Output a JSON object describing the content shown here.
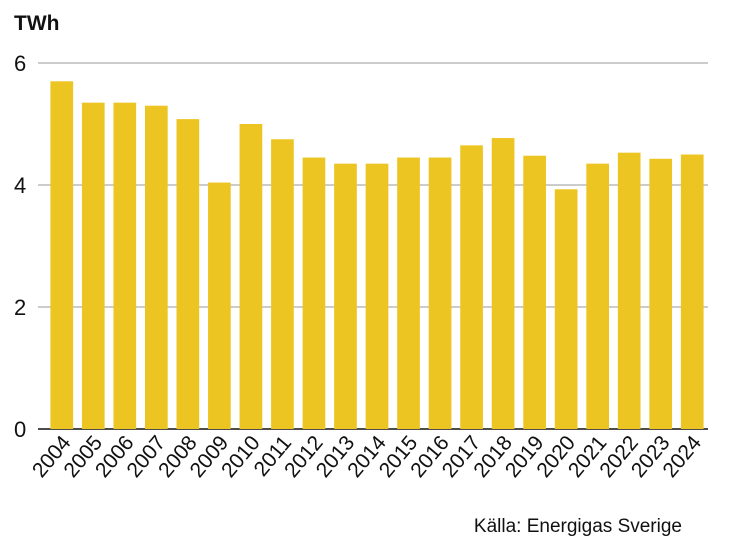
{
  "chart_data": {
    "type": "bar",
    "ylabel": "TWh",
    "source": "Källa: Energigas Sverige",
    "categories": [
      "2004",
      "2005",
      "2006",
      "2007",
      "2008",
      "2009",
      "2010",
      "2011",
      "2012",
      "2013",
      "2014",
      "2015",
      "2016",
      "2017",
      "2018",
      "2019",
      "2020",
      "2021",
      "2022",
      "2023",
      "2024"
    ],
    "values": [
      5.7,
      5.35,
      5.35,
      5.3,
      5.08,
      4.04,
      5.0,
      4.75,
      4.45,
      4.35,
      4.35,
      4.45,
      4.45,
      4.65,
      4.77,
      4.48,
      3.93,
      4.35,
      4.53,
      4.43,
      4.5
    ],
    "ylim": [
      0,
      6
    ],
    "yticks": [
      0,
      2,
      4,
      6
    ],
    "grid": true,
    "colors": {
      "bar": "#EDC523",
      "grid": "#9a9a9a",
      "axis": "#111111"
    }
  }
}
